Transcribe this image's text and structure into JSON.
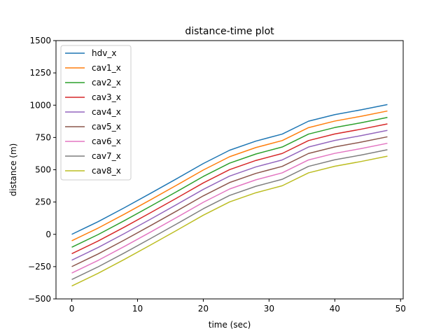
{
  "chart_data": {
    "type": "line",
    "title": "distance-time plot",
    "xlabel": "time (sec)",
    "ylabel": "distance (m)",
    "xlim": [
      -2.4,
      50.4
    ],
    "ylim": [
      -500,
      1500
    ],
    "xticks": [
      0,
      10,
      20,
      30,
      40,
      50
    ],
    "yticks": [
      -500,
      -250,
      0,
      250,
      500,
      750,
      1000,
      1250,
      1500
    ],
    "grid": false,
    "legend_position": "upper-left",
    "x": [
      0,
      4,
      8,
      12,
      16,
      20,
      24,
      28,
      32,
      36,
      40,
      44,
      48
    ],
    "base_series": [
      0,
      98,
      206,
      318,
      432,
      548,
      651,
      722,
      776,
      876,
      927,
      964,
      1005
    ],
    "series": [
      {
        "name": "hdv_x",
        "offset": 0,
        "color": "#1f77b4"
      },
      {
        "name": "cav1_x",
        "offset": -50,
        "color": "#ff7f0e"
      },
      {
        "name": "cav2_x",
        "offset": -100,
        "color": "#2ca02c"
      },
      {
        "name": "cav3_x",
        "offset": -150,
        "color": "#d62728"
      },
      {
        "name": "cav4_x",
        "offset": -200,
        "color": "#9467bd"
      },
      {
        "name": "cav5_x",
        "offset": -250,
        "color": "#8c564b"
      },
      {
        "name": "cav6_x",
        "offset": -300,
        "color": "#e377c2"
      },
      {
        "name": "cav7_x",
        "offset": -350,
        "color": "#7f7f7f"
      },
      {
        "name": "cav8_x",
        "offset": -400,
        "color": "#bcbd22"
      }
    ]
  }
}
